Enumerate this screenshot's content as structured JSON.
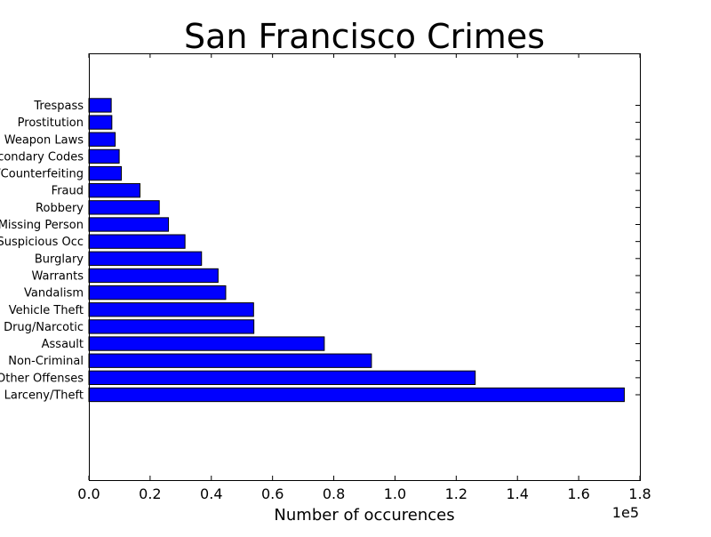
{
  "chart_data": {
    "type": "bar",
    "orientation": "horizontal",
    "title": "San Francisco Crimes",
    "xlabel": "Number of occurences",
    "ylabel": "",
    "x_offset_text": "1e5",
    "xlim": [
      0,
      180000
    ],
    "xticks": [
      "0.0",
      "0.2",
      "0.4",
      "0.6",
      "0.8",
      "1.0",
      "1.2",
      "1.4",
      "1.6",
      "1.8"
    ],
    "categories": [
      "Larceny/Theft",
      "Other Offenses",
      "Non-Criminal",
      "Assault",
      "Drug/Narcotic",
      "Vehicle Theft",
      "Vandalism",
      "Warrants",
      "Burglary",
      "Suspicious Occ",
      "Missing Person",
      "Robbery",
      "Fraud",
      "Forgery/Counterfeiting",
      "Secondary Codes",
      "Weapon Laws",
      "Prostitution",
      "Trespass"
    ],
    "values": [
      174900,
      126200,
      92300,
      76900,
      53900,
      53800,
      44700,
      42200,
      36800,
      31400,
      26000,
      23000,
      16700,
      10600,
      9900,
      8600,
      7500,
      7300
    ],
    "bar_color": "#0000ff",
    "grid": false,
    "legend": "none"
  }
}
